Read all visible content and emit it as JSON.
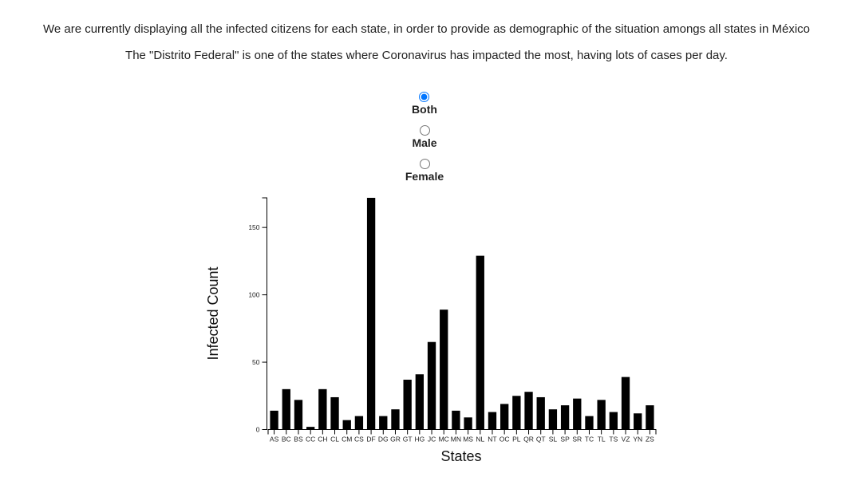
{
  "intro": {
    "line1": "We are currently displaying all the infected citizens for each state, in order to provide as demographic of the situation amongs all states in México",
    "line2": "The \"Distrito Federal\" is one of the states where Coronavirus has impacted the most, having lots of cases per day."
  },
  "filter": {
    "selected": "Both",
    "options": [
      {
        "label": "Both",
        "value": "both"
      },
      {
        "label": "Male",
        "value": "male"
      },
      {
        "label": "Female",
        "value": "female"
      }
    ]
  },
  "chart_data": {
    "type": "bar",
    "title": "",
    "xlabel": "States",
    "ylabel": "Infected Count",
    "ylim": [
      0,
      172
    ],
    "yticks": [
      0,
      50,
      100,
      150
    ],
    "grid": false,
    "bar_color": "#000000",
    "categories": [
      "AS",
      "BC",
      "BS",
      "CC",
      "CH",
      "CL",
      "CM",
      "CS",
      "DF",
      "DG",
      "GR",
      "GT",
      "HG",
      "JC",
      "MC",
      "MN",
      "MS",
      "NL",
      "NT",
      "OC",
      "PL",
      "QR",
      "QT",
      "SL",
      "SP",
      "SR",
      "TC",
      "TL",
      "TS",
      "VZ",
      "YN",
      "ZS"
    ],
    "values": [
      14,
      30,
      22,
      2,
      30,
      24,
      7,
      10,
      172,
      10,
      15,
      37,
      41,
      65,
      89,
      14,
      9,
      129,
      13,
      19,
      25,
      28,
      24,
      15,
      18,
      23,
      10,
      22,
      13,
      39,
      12,
      18
    ]
  }
}
